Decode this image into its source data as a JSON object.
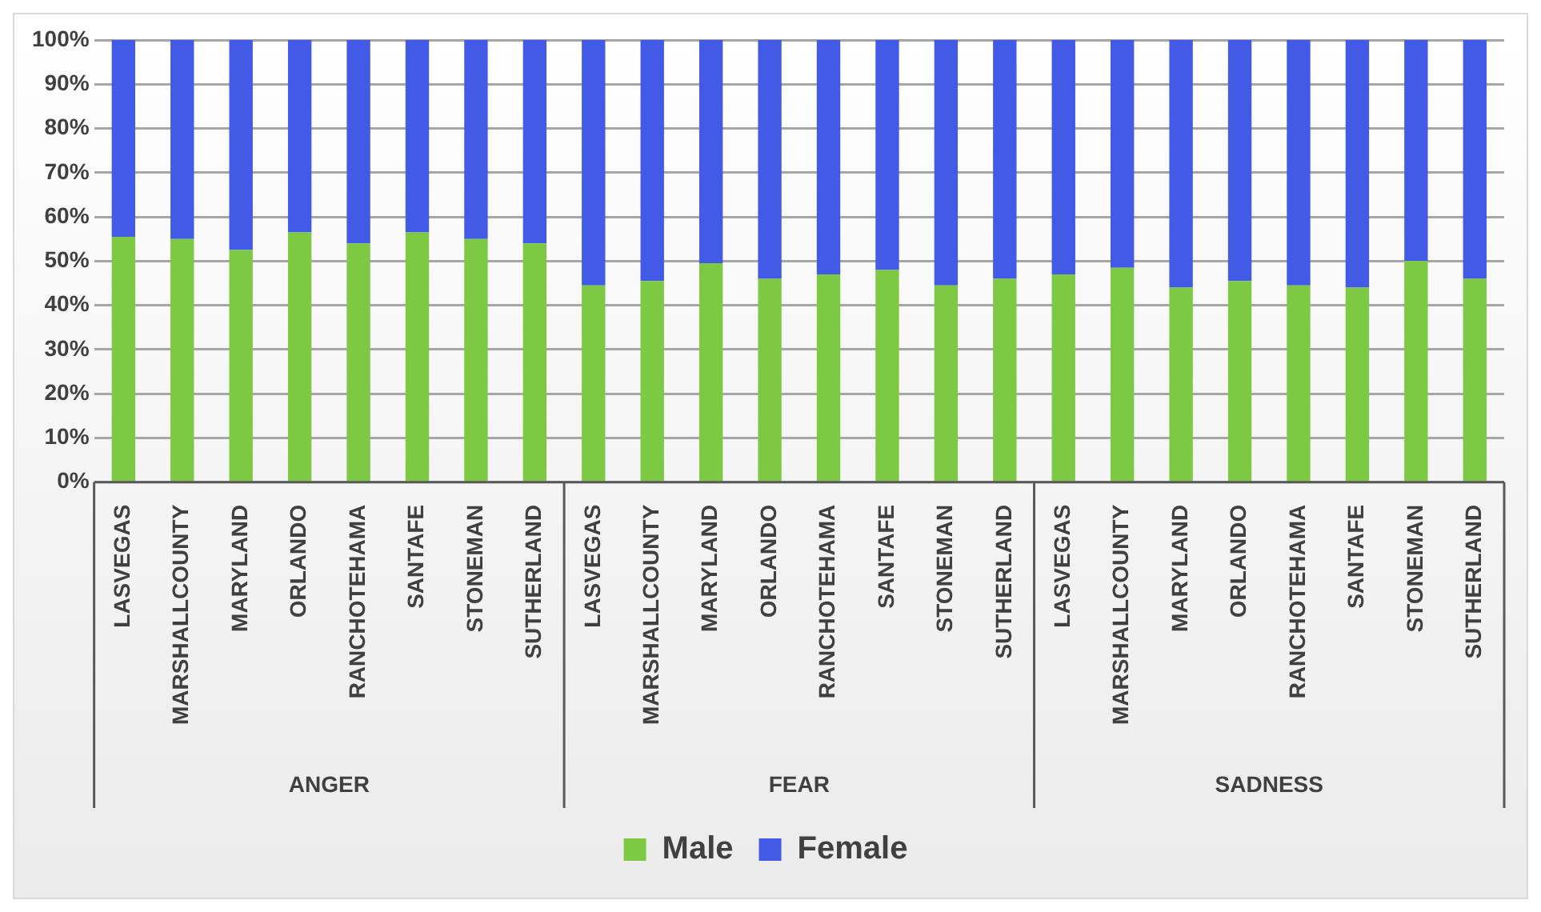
{
  "chart_data": {
    "type": "bar",
    "stacked": true,
    "categories": [
      "LASVEGAS",
      "MARSHALLCOUNTY",
      "MARYLAND",
      "ORLANDO",
      "RANCHOTEHAMA",
      "SANTAFE",
      "STONEMAN",
      "SUTHERLAND",
      "LASVEGAS",
      "MARSHALLCOUNTY",
      "MARYLAND",
      "ORLANDO",
      "RANCHOTEHAMA",
      "SANTAFE",
      "STONEMAN",
      "SUTHERLAND",
      "LASVEGAS",
      "MARSHALLCOUNTY",
      "MARYLAND",
      "ORLANDO",
      "RANCHOTEHAMA",
      "SANTAFE",
      "STONEMAN",
      "SUTHERLAND"
    ],
    "series": [
      {
        "name": "Male",
        "color": "#7dc943",
        "values": [
          55.5,
          55,
          52.5,
          56.5,
          54,
          56.5,
          55,
          54,
          44.5,
          45.5,
          49.5,
          46,
          47,
          48,
          44.5,
          46,
          47,
          48.5,
          44,
          45.5,
          44.5,
          44,
          50,
          46
        ]
      },
      {
        "name": "Female",
        "color": "#435ae6",
        "values": [
          44.5,
          45,
          47.5,
          43.5,
          46,
          43.5,
          45,
          46,
          55.5,
          54.5,
          50.5,
          54,
          53,
          52,
          55.5,
          54,
          53,
          51.5,
          56,
          54.5,
          55.5,
          56,
          50,
          54
        ]
      }
    ],
    "ylim": [
      0,
      100
    ],
    "yticks": [
      {
        "value": 0,
        "label": "0%"
      },
      {
        "value": 10,
        "label": "10%"
      },
      {
        "value": 20,
        "label": "20%"
      },
      {
        "value": 30,
        "label": "30%"
      },
      {
        "value": 40,
        "label": "40%"
      },
      {
        "value": 50,
        "label": "50%"
      },
      {
        "value": 60,
        "label": "60%"
      },
      {
        "value": 70,
        "label": "70%"
      },
      {
        "value": 80,
        "label": "80%"
      },
      {
        "value": 90,
        "label": "90%"
      },
      {
        "value": 100,
        "label": "100%"
      }
    ],
    "annotations": [
      "ANGER",
      "FEAR",
      "SADNESS"
    ],
    "grid": "y",
    "legend": "bottom"
  }
}
